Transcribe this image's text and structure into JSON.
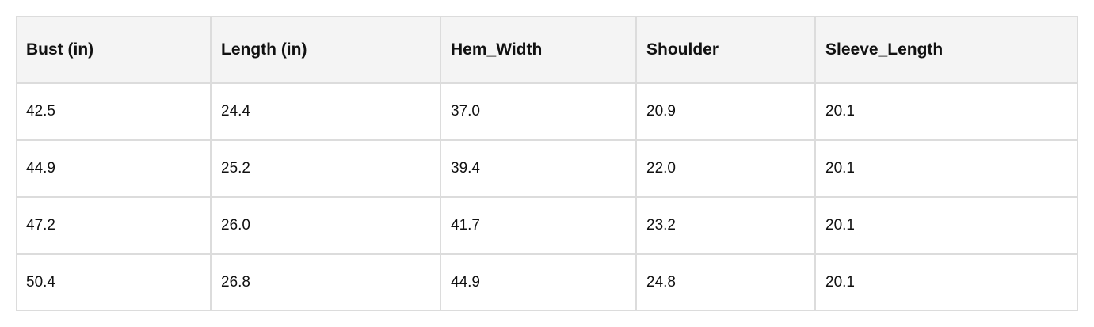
{
  "table": {
    "header": [
      "Bust (in)",
      "Length (in)",
      "Hem_Width",
      "Shoulder",
      "Sleeve_Length"
    ],
    "rows": [
      [
        "42.5",
        "24.4",
        "37.0",
        "20.9",
        "20.1"
      ],
      [
        "44.9",
        "25.2",
        "39.4",
        "22.0",
        "20.1"
      ],
      [
        "47.2",
        "26.0",
        "41.7",
        "23.2",
        "20.1"
      ],
      [
        "50.4",
        "26.8",
        "44.9",
        "24.8",
        "20.1"
      ]
    ]
  }
}
